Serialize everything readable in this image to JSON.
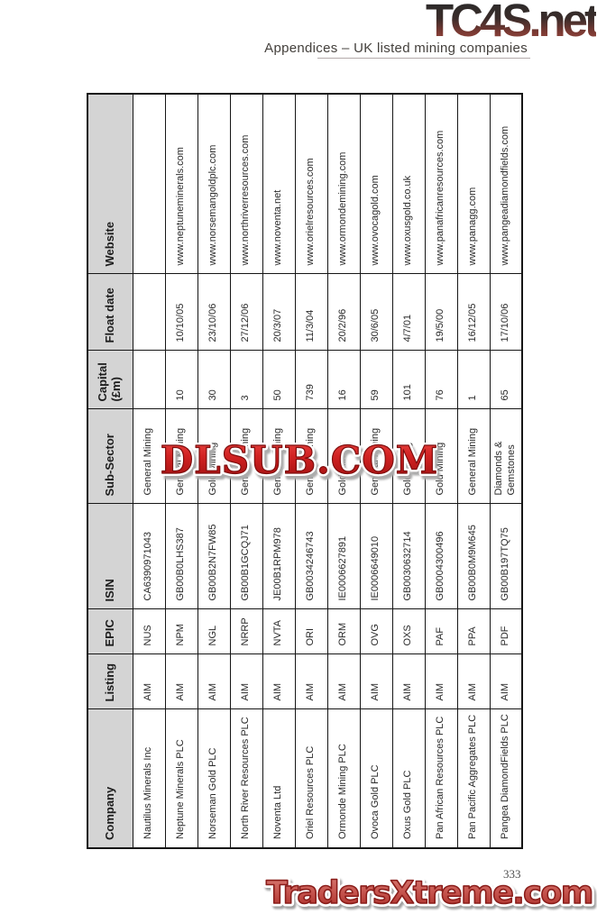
{
  "page": {
    "number": "333"
  },
  "header": {
    "logo_text": "TC4S.net",
    "subtitle": "Appendices – UK listed mining companies"
  },
  "watermarks": {
    "center": "DLSUB.COM",
    "bottom": "TradersXtreme.com"
  },
  "table": {
    "columns": [
      "Company",
      "Listing",
      "EPIC",
      "ISIN",
      "Sub-Sector",
      "Capital (£m)",
      "Float date",
      "Website"
    ],
    "fields": [
      "company",
      "listing",
      "epic",
      "isin",
      "sub_sector",
      "capital",
      "float_date",
      "website"
    ],
    "rows": [
      {
        "company": "Nautilus Minerals Inc",
        "listing": "AIM",
        "epic": "NUS",
        "isin": "CA6390971043",
        "sub_sector": "General Mining",
        "capital": "",
        "float_date": "",
        "website": ""
      },
      {
        "company": "Neptune Minerals PLC",
        "listing": "AIM",
        "epic": "NPM",
        "isin": "GB00B0LHS387",
        "sub_sector": "General Mining",
        "capital": "10",
        "float_date": "10/10/05",
        "website": "www.neptuneminerals.com"
      },
      {
        "company": "Norseman Gold PLC",
        "listing": "AIM",
        "epic": "NGL",
        "isin": "GB00B2N7FW85",
        "sub_sector": "Gold Mining",
        "capital": "30",
        "float_date": "23/10/06",
        "website": "www.norsemangoldplc.com"
      },
      {
        "company": "North River Resources PLC",
        "listing": "AIM",
        "epic": "NRRP",
        "isin": "GB00B1GCQJ71",
        "sub_sector": "General Mining",
        "capital": "3",
        "float_date": "27/12/06",
        "website": "www.northriverresources.com"
      },
      {
        "company": "Noventa Ltd",
        "listing": "AIM",
        "epic": "NVTA",
        "isin": "JE00B1RPM978",
        "sub_sector": "General Mining",
        "capital": "50",
        "float_date": "20/3/07",
        "website": "www.noventa.net"
      },
      {
        "company": "Oriel Resources PLC",
        "listing": "AIM",
        "epic": "ORI",
        "isin": "GB0034246743",
        "sub_sector": "General Mining",
        "capital": "739",
        "float_date": "11/3/04",
        "website": "www.orielresources.com"
      },
      {
        "company": "Ormonde Mining PLC",
        "listing": "AIM",
        "epic": "ORM",
        "isin": "IE0006627891",
        "sub_sector": "Gold Mining",
        "capital": "16",
        "float_date": "20/2/96",
        "website": "www.ormondemining.com"
      },
      {
        "company": "Ovoca Gold PLC",
        "listing": "AIM",
        "epic": "OVG",
        "isin": "IE0006649010",
        "sub_sector": "General Mining",
        "capital": "59",
        "float_date": "30/6/05",
        "website": "www.ovocagold.com"
      },
      {
        "company": "Oxus Gold PLC",
        "listing": "AIM",
        "epic": "OXS",
        "isin": "GB0030632714",
        "sub_sector": "Gold Mining",
        "capital": "101",
        "float_date": "4/7/01",
        "website": "www.oxusgold.co.uk"
      },
      {
        "company": "Pan African Resources PLC",
        "listing": "AIM",
        "epic": "PAF",
        "isin": "GB0004300496",
        "sub_sector": "Gold Mining",
        "capital": "76",
        "float_date": "19/5/00",
        "website": "www.panafricanresources.com"
      },
      {
        "company": "Pan Pacific Aggregates PLC",
        "listing": "AIM",
        "epic": "PPA",
        "isin": "GB00B0M9M645",
        "sub_sector": "General Mining",
        "capital": "1",
        "float_date": "16/12/05",
        "website": "www.panagg.com"
      },
      {
        "company": "Pangea DiamondFields PLC",
        "listing": "AIM",
        "epic": "PDF",
        "isin": "GB00B197TQ75",
        "sub_sector": "Diamonds & Gemstones",
        "capital": "65",
        "float_date": "17/10/06",
        "website": "www.pangeadiamondfields.com"
      }
    ]
  },
  "colors": {
    "header_cell_bg": "#d4d4d4",
    "table_border": "#161616",
    "watermark_red": "#c81f1f",
    "traders_red": "#c05a55",
    "logo_gradient_top": "#2b2b2b",
    "logo_gradient_bottom": "#9c4f45"
  }
}
